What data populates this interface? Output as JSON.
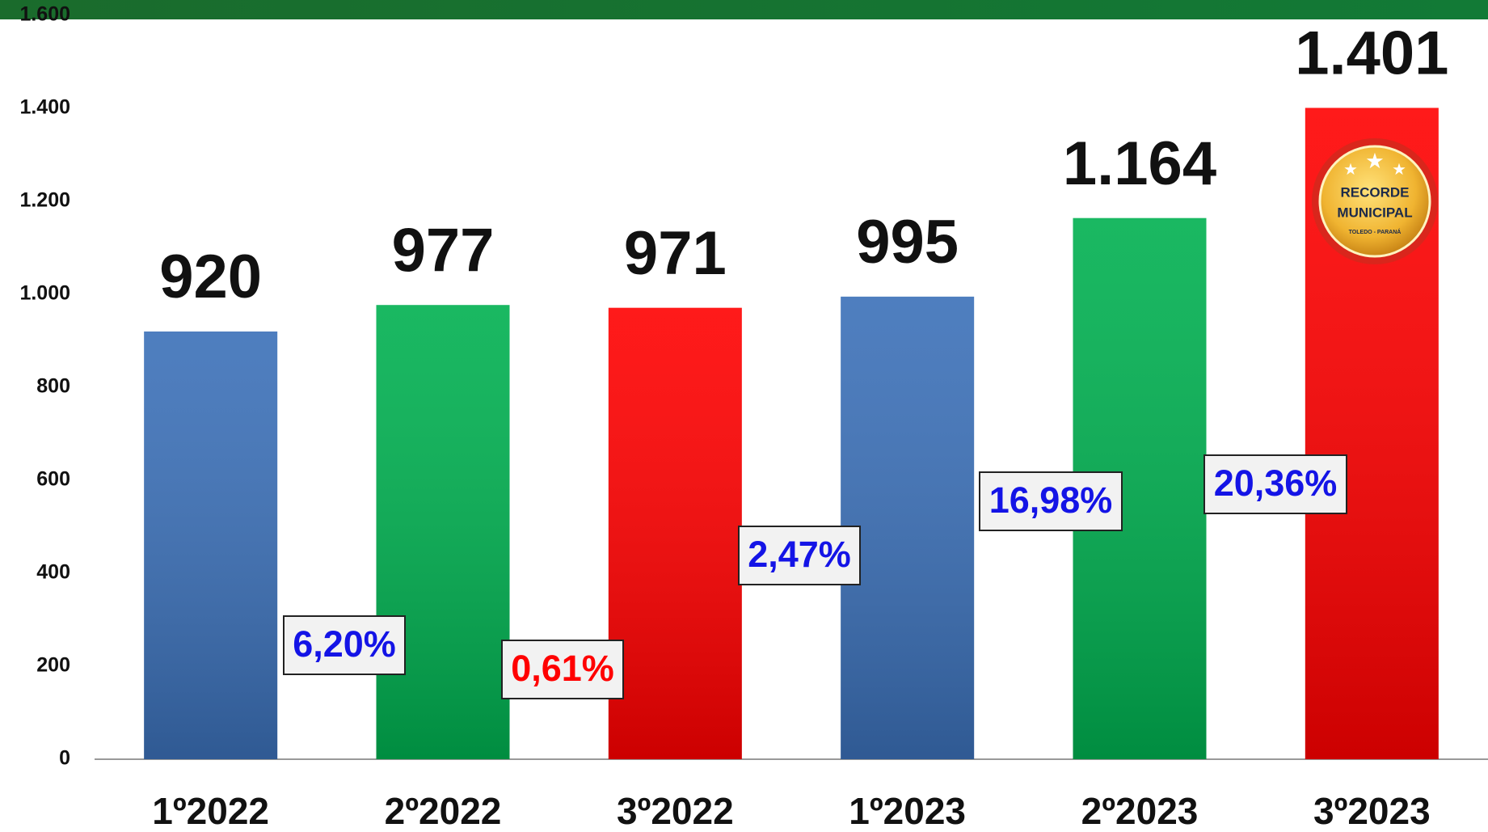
{
  "chart_data": {
    "type": "bar",
    "categories": [
      "1º2022",
      "2º2022",
      "3º2022",
      "1º2023",
      "2º2023",
      "3º2023"
    ],
    "values": [
      920,
      977,
      971,
      995,
      1164,
      1401
    ],
    "value_labels": [
      "920",
      "977",
      "971",
      "995",
      "1.164",
      "1.401"
    ],
    "colors": [
      "#3b70b8",
      "#00b050",
      "#ff0000",
      "#3b70b8",
      "#00b050",
      "#ff0000"
    ],
    "ylim": [
      0,
      1600
    ],
    "yticks": [
      0,
      200,
      400,
      600,
      800,
      {
        "value": 1000,
        "label": "1.000"
      },
      {
        "value": 1200,
        "label": "1.200"
      },
      {
        "value": 1400,
        "label": "1.400"
      },
      {
        "value": 1600,
        "label": "1.600"
      }
    ],
    "annotations": [
      {
        "text": "6,20%",
        "color": "#1414e6"
      },
      {
        "text": "0,61%",
        "color": "#ff0000"
      },
      {
        "text": "2,47%",
        "color": "#1414e6"
      },
      {
        "text": "16,98%",
        "color": "#1414e6"
      },
      {
        "text": "20,36%",
        "color": "#1414e6"
      }
    ],
    "badge": {
      "lines": [
        "RECORDE",
        "MUNICIPAL",
        "TOLEDO - PARANÁ"
      ]
    }
  }
}
